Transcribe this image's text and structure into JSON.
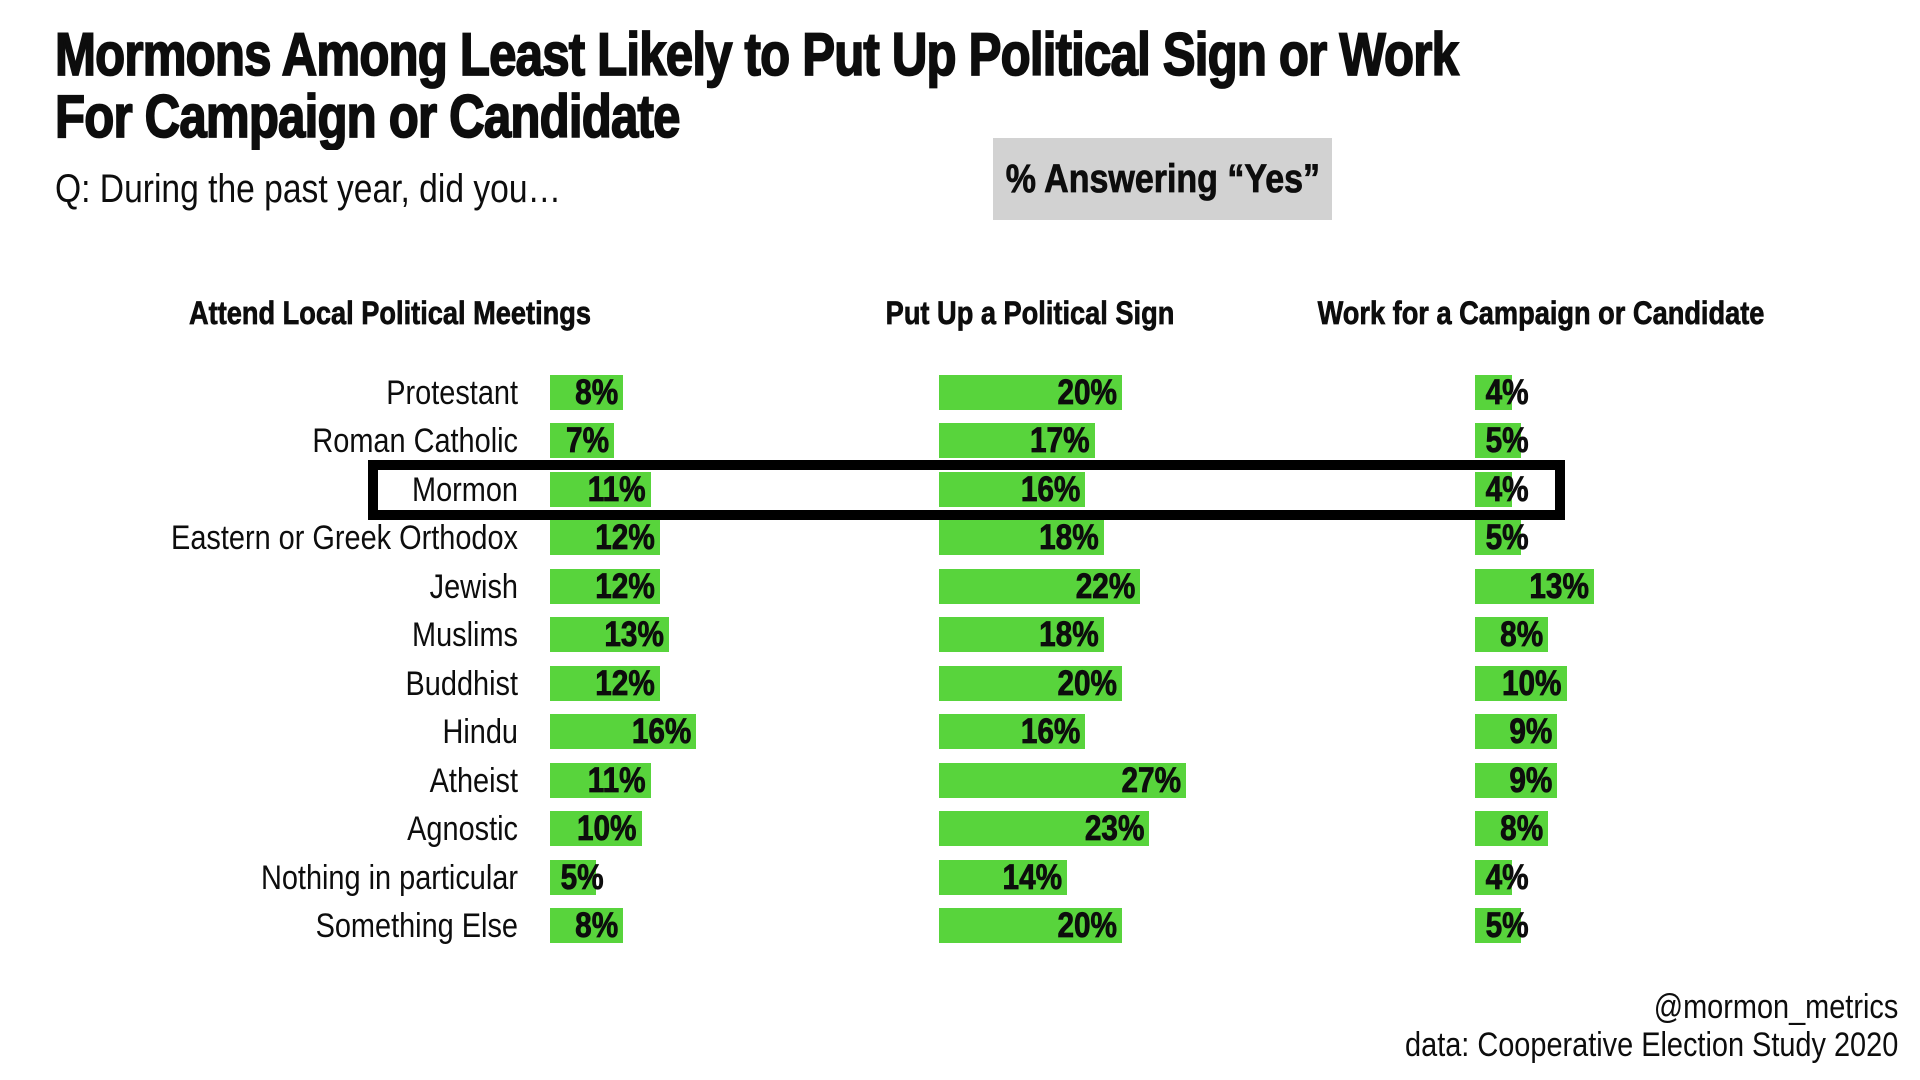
{
  "title": {
    "line1": "Mormons Among Least Likely to Put Up Political Sign or Work",
    "line2": "For Campaign or Candidate"
  },
  "subtitle": "Q: During the past year, did you…",
  "badge": "% Answering “Yes”",
  "columns": [
    "Attend Local Political Meetings",
    "Put Up a Political Sign",
    "Work for a Campaign or Candidate"
  ],
  "highlight": {
    "category": "Mormon"
  },
  "footer": {
    "handle": "@mormon_metrics",
    "source": "data: Cooperative Election Study 2020"
  },
  "colors": {
    "bar_green": "#58d43c",
    "badge_bg": "#d2d2d2",
    "highlight_border": "#000000",
    "text": "#0d0d0d"
  },
  "chart_data": {
    "type": "bar",
    "orientation": "horizontal",
    "unit": "%",
    "title": "Mormons Among Least Likely to Put Up Political Sign or Work For Campaign or Candidate",
    "categories": [
      "Protestant",
      "Roman Catholic",
      "Mormon",
      "Eastern or Greek Orthodox",
      "Jewish",
      "Muslims",
      "Buddhist",
      "Hindu",
      "Atheist",
      "Agnostic",
      "Nothing in particular",
      "Something Else"
    ],
    "series": [
      {
        "name": "Attend Local Political Meetings",
        "values": [
          8,
          7,
          11,
          12,
          12,
          13,
          12,
          16,
          11,
          10,
          5,
          8
        ]
      },
      {
        "name": "Put Up a Political Sign",
        "values": [
          20,
          17,
          16,
          18,
          22,
          18,
          20,
          16,
          27,
          23,
          14,
          20
        ]
      },
      {
        "name": "Work for a Campaign or Candidate",
        "values": [
          4,
          5,
          4,
          5,
          13,
          8,
          10,
          9,
          9,
          8,
          4,
          5
        ]
      }
    ],
    "xlim": [
      0,
      30
    ],
    "grid": false,
    "legend": false,
    "value_labels": "inside-right"
  }
}
